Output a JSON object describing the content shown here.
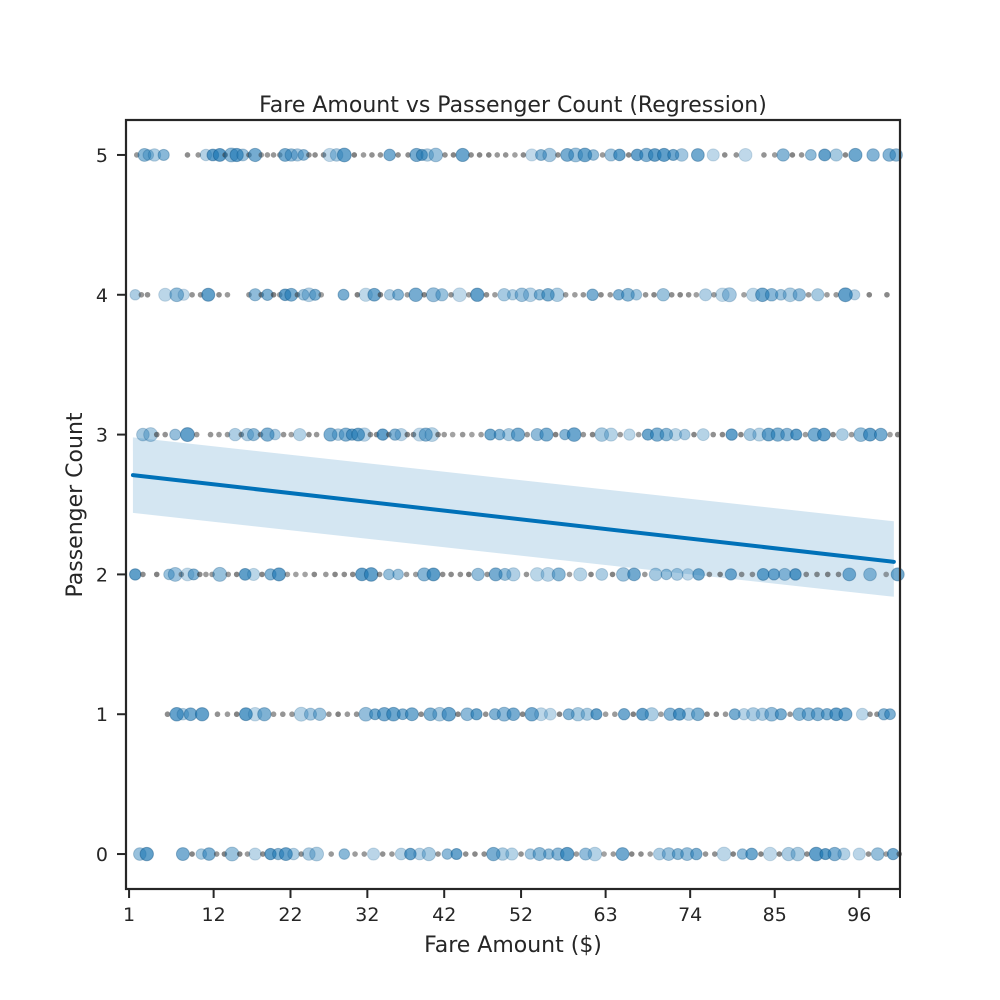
{
  "chart_data": {
    "type": "scatter",
    "title": "Fare Amount vs Passenger Count (Regression)",
    "xlabel": "Fare Amount ($)",
    "ylabel": "Passenger Count",
    "xlim": [
      0.6,
      101.3
    ],
    "ylim": [
      -0.25,
      5.25
    ],
    "x_ticks": [
      1,
      12,
      22,
      32,
      42,
      52,
      63,
      74,
      85,
      96
    ],
    "y_ticks": [
      0,
      1,
      2,
      3,
      4,
      5
    ],
    "grid": false,
    "legend": "none",
    "regression": {
      "x_start": 1.5,
      "x_end": 100.5,
      "y_start": 2.71,
      "y_end": 2.09,
      "ci_upper_start": 2.98,
      "ci_upper_end": 2.38,
      "ci_lower_start": 2.44,
      "ci_lower_end": 1.84
    },
    "series": [
      {
        "values": [
          {
            "y": 5,
            "x": [
              2.0,
              3.0,
              3.5,
              4.3,
              5.5,
              8.6,
              10.0,
              11.0,
              11.9,
              12.8,
              13.5,
              14.3,
              15.0,
              15.8,
              16.6,
              17.4,
              18.2,
              19.0,
              19.8,
              20.6,
              21.3,
              22.1,
              22.9,
              23.7,
              24.4,
              25.2,
              26.3,
              27.1,
              28.0,
              29.0,
              30.3,
              31.5,
              32.6,
              33.7,
              34.9,
              36.0,
              37.3,
              38.4,
              39.1,
              39.8,
              40.9,
              42.1,
              43.2,
              44.4,
              45.5,
              46.6,
              47.8,
              48.9,
              50.0,
              51.2,
              52.3,
              53.4,
              54.6,
              55.7,
              56.8,
              58.0,
              59.1,
              60.3,
              61.4,
              62.6,
              63.7,
              64.8,
              66.0,
              67.1,
              68.3,
              69.4,
              70.6,
              71.8,
              72.9,
              75.0,
              77.0,
              78.5,
              80.0,
              81.2,
              83.6,
              85.0,
              86.1,
              87.3,
              88.5,
              89.7,
              91.5,
              93.0,
              94.2,
              95.5,
              97.8,
              99.9,
              100.8
            ]
          },
          {
            "y": 4,
            "x": [
              1.8,
              2.6,
              3.4,
              5.7,
              7.2,
              8.1,
              9.2,
              10.3,
              11.3,
              12.7,
              13.8,
              16.6,
              17.4,
              18.2,
              19.0,
              19.8,
              20.6,
              21.3,
              22.1,
              22.9,
              23.7,
              24.4,
              25.2,
              26.0,
              28.9,
              30.7,
              31.8,
              32.9,
              33.7,
              34.9,
              36.0,
              37.2,
              38.3,
              39.4,
              40.6,
              41.7,
              42.9,
              44.0,
              45.2,
              46.3,
              47.5,
              48.6,
              49.8,
              50.9,
              52.1,
              53.2,
              54.4,
              55.5,
              56.7,
              57.8,
              59.0,
              60.1,
              61.3,
              62.4,
              63.6,
              64.7,
              65.9,
              67.0,
              68.2,
              69.3,
              70.5,
              71.6,
              72.7,
              73.8,
              74.8,
              76.0,
              77.1,
              78.2,
              79.1,
              81.0,
              82.2,
              83.4,
              84.6,
              85.8,
              87.0,
              88.2,
              89.4,
              90.6,
              91.8,
              93.0,
              94.2,
              95.4,
              97.3,
              99.6
            ]
          },
          {
            "y": 3,
            "x": [
              2.8,
              3.8,
              4.6,
              5.7,
              7.0,
              8.6,
              9.8,
              11.6,
              12.7,
              13.8,
              14.8,
              15.6,
              16.4,
              17.2,
              18.1,
              19.0,
              20.0,
              21.1,
              22.1,
              23.2,
              24.4,
              25.4,
              27.2,
              28.2,
              29.2,
              30.0,
              30.8,
              31.6,
              32.4,
              33.2,
              34.0,
              34.8,
              35.6,
              36.4,
              37.2,
              38.0,
              38.8,
              39.6,
              40.4,
              41.2,
              42.0,
              43.1,
              44.4,
              45.6,
              46.8,
              48.0,
              49.2,
              50.4,
              51.6,
              52.8,
              54.1,
              55.3,
              56.5,
              57.7,
              58.9,
              60.1,
              61.3,
              62.5,
              63.7,
              64.9,
              66.1,
              67.3,
              68.5,
              69.7,
              70.9,
              72.1,
              73.3,
              74.5,
              75.7,
              77.0,
              78.2,
              79.4,
              80.6,
              81.8,
              83.0,
              84.2,
              85.4,
              86.6,
              87.8,
              89.0,
              90.2,
              91.4,
              92.6,
              93.8,
              95.0,
              96.2,
              97.4,
              98.8,
              100.0,
              101.0
            ]
          },
          {
            "y": 2,
            "x": [
              1.8,
              2.8,
              4.6,
              6.2,
              7.0,
              7.8,
              8.6,
              9.4,
              10.2,
              11.0,
              11.8,
              12.8,
              13.9,
              15.0,
              16.1,
              17.2,
              18.3,
              19.4,
              20.5,
              21.6,
              22.7,
              23.9,
              25.1,
              26.6,
              27.8,
              29.0,
              30.1,
              31.3,
              32.5,
              33.6,
              34.8,
              36.0,
              37.1,
              38.3,
              39.4,
              40.6,
              41.8,
              42.9,
              44.1,
              45.2,
              46.4,
              47.6,
              48.7,
              49.9,
              51.0,
              52.7,
              54.1,
              55.5,
              56.9,
              58.3,
              59.7,
              61.1,
              62.5,
              63.9,
              65.3,
              66.7,
              68.1,
              69.5,
              70.9,
              72.3,
              73.7,
              75.1,
              76.5,
              77.9,
              79.3,
              80.7,
              82.1,
              83.5,
              84.9,
              86.3,
              87.7,
              89.1,
              90.5,
              91.9,
              93.3,
              94.7,
              97.4,
              99.5,
              101.0
            ]
          },
          {
            "y": 1,
            "x": [
              6.0,
              7.2,
              8.0,
              9.0,
              10.5,
              12.5,
              13.8,
              15.0,
              16.2,
              17.4,
              18.6,
              19.8,
              21.0,
              22.2,
              23.4,
              24.6,
              25.8,
              27.0,
              28.2,
              29.4,
              30.6,
              31.8,
              33.0,
              34.2,
              35.4,
              36.6,
              37.8,
              39.0,
              40.2,
              41.4,
              42.6,
              43.8,
              45.0,
              46.2,
              47.4,
              48.6,
              49.8,
              51.0,
              52.2,
              53.4,
              54.6,
              55.8,
              57.0,
              58.2,
              59.4,
              60.6,
              61.8,
              63.0,
              64.2,
              65.4,
              66.6,
              67.8,
              69.0,
              70.2,
              71.4,
              72.6,
              73.8,
              75.0,
              76.2,
              77.4,
              78.6,
              79.8,
              81.0,
              82.2,
              83.4,
              84.6,
              85.8,
              87.0,
              88.2,
              89.4,
              90.6,
              91.8,
              93.0,
              94.2,
              96.4,
              97.4,
              98.3,
              99.2,
              100.0
            ]
          },
          {
            "y": 0,
            "x": [
              2.4,
              3.3,
              8.0,
              9.2,
              10.4,
              11.4,
              12.4,
              13.4,
              14.4,
              15.4,
              16.4,
              17.4,
              18.4,
              19.4,
              20.4,
              21.4,
              22.4,
              23.4,
              24.4,
              25.4,
              27.3,
              29.0,
              30.4,
              31.6,
              32.8,
              34.0,
              35.2,
              36.4,
              37.6,
              38.8,
              40.0,
              41.2,
              42.4,
              43.6,
              44.8,
              46.0,
              47.2,
              48.4,
              49.6,
              50.8,
              52.0,
              53.2,
              54.4,
              55.6,
              56.8,
              58.0,
              59.2,
              60.4,
              61.6,
              62.8,
              64.0,
              65.2,
              66.4,
              67.6,
              68.8,
              70.0,
              71.2,
              72.4,
              73.6,
              74.8,
              76.0,
              77.2,
              78.4,
              79.6,
              80.8,
              82.0,
              83.2,
              84.4,
              85.6,
              86.8,
              88.0,
              89.2,
              90.4,
              91.6,
              92.8,
              94.0,
              96.0,
              97.2,
              98.4,
              99.5,
              100.4,
              101.2
            ]
          }
        ]
      }
    ],
    "colors": {
      "marker": "#1f78b4",
      "marker_dark": "#0b4f80",
      "regression_line": "#0071b8",
      "ci_band": "#c6deee",
      "axis": "#262626"
    }
  }
}
